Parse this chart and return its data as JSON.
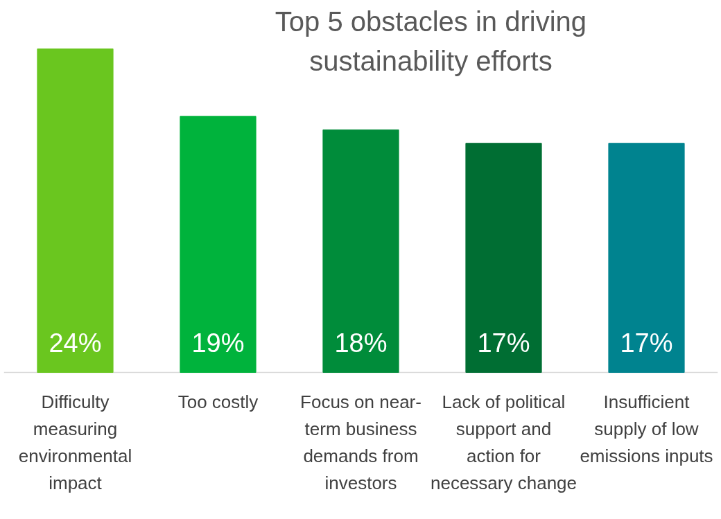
{
  "chart_data": {
    "type": "bar",
    "title": "Top 5 obstacles in driving sustainability efforts",
    "categories": [
      "Difficulty measuring environmental impact",
      "Too costly",
      "Focus on near-term business demands from investors",
      "Lack of political support and action for necessary change",
      "Insufficient supply of low emissions inputs"
    ],
    "values": [
      24,
      19,
      18,
      17,
      17
    ],
    "colors": [
      "#6ac61f",
      "#00b33c",
      "#008c3a",
      "#006e33",
      "#00838f"
    ],
    "data_labels": true,
    "value_labels": [
      "24%",
      "19%",
      "18%",
      "17%",
      "17%"
    ]
  }
}
